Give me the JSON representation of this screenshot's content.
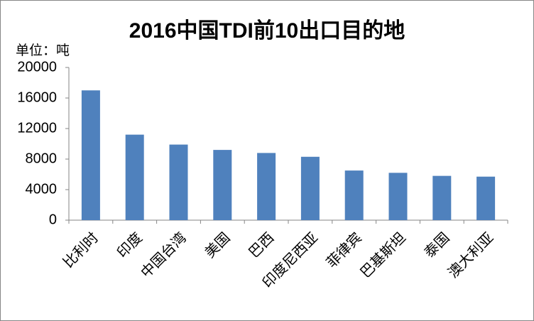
{
  "chart_data": {
    "type": "bar",
    "title": "2016中国TDI前10出口目的地",
    "y_label": "单位：吨",
    "categories": [
      "比利时",
      "印度",
      "中国台湾",
      "美国",
      "巴西",
      "印度尼西亚",
      "菲律宾",
      "巴基斯坦",
      "泰国",
      "澳大利亚"
    ],
    "values": [
      17000,
      11200,
      9900,
      9200,
      8800,
      8300,
      6500,
      6200,
      5800,
      5700
    ],
    "color": "#4f81bd",
    "ylim": [
      0,
      20000
    ],
    "yticks": [
      0,
      4000,
      8000,
      12000,
      16000,
      20000
    ],
    "grid": false
  }
}
